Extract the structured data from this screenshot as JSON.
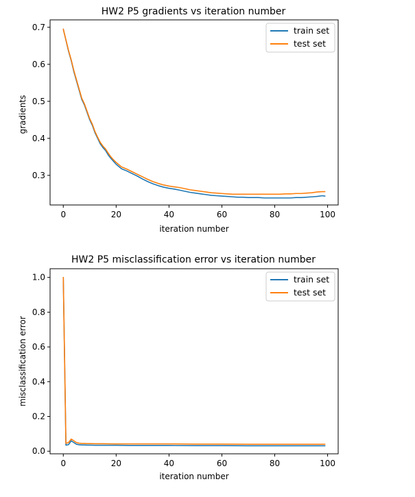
{
  "chart_data": [
    {
      "type": "line",
      "title": "HW2 P5 gradients vs iteration number",
      "xlabel": "iteration number",
      "ylabel": "gradients",
      "xlim": [
        -5,
        104
      ],
      "ylim": [
        0.22,
        0.72
      ],
      "xticks": [
        0,
        20,
        40,
        60,
        80,
        100
      ],
      "yticks": [
        0.3,
        0.4,
        0.5,
        0.6,
        0.7
      ],
      "grid": false,
      "legend": "top-right",
      "series": [
        {
          "name": "train set",
          "color": "#1f77b4",
          "x": [
            0,
            1,
            2,
            3,
            4,
            5,
            6,
            7,
            8,
            9,
            10,
            11,
            12,
            13,
            14,
            15,
            16,
            17,
            18,
            19,
            20,
            22,
            24,
            26,
            28,
            30,
            32,
            34,
            36,
            38,
            40,
            42,
            44,
            46,
            48,
            50,
            52,
            54,
            56,
            58,
            60,
            62,
            64,
            66,
            68,
            70,
            72,
            74,
            76,
            78,
            80,
            82,
            84,
            86,
            88,
            90,
            92,
            94,
            96,
            98,
            99
          ],
          "y": [
            0.695,
            0.665,
            0.635,
            0.61,
            0.58,
            0.555,
            0.53,
            0.505,
            0.49,
            0.47,
            0.45,
            0.435,
            0.415,
            0.4,
            0.385,
            0.375,
            0.367,
            0.355,
            0.346,
            0.338,
            0.33,
            0.318,
            0.312,
            0.305,
            0.298,
            0.29,
            0.283,
            0.277,
            0.272,
            0.268,
            0.265,
            0.263,
            0.26,
            0.257,
            0.254,
            0.252,
            0.25,
            0.248,
            0.246,
            0.245,
            0.244,
            0.243,
            0.242,
            0.241,
            0.241,
            0.24,
            0.24,
            0.24,
            0.239,
            0.239,
            0.239,
            0.239,
            0.239,
            0.239,
            0.24,
            0.24,
            0.241,
            0.242,
            0.243,
            0.245,
            0.244
          ]
        },
        {
          "name": "test set",
          "color": "#ff7f0e",
          "x": [
            0,
            1,
            2,
            3,
            4,
            5,
            6,
            7,
            8,
            9,
            10,
            11,
            12,
            13,
            14,
            15,
            16,
            17,
            18,
            19,
            20,
            22,
            24,
            26,
            28,
            30,
            32,
            34,
            36,
            38,
            40,
            42,
            44,
            46,
            48,
            50,
            52,
            54,
            56,
            58,
            60,
            62,
            64,
            66,
            68,
            70,
            72,
            74,
            76,
            78,
            80,
            82,
            84,
            86,
            88,
            90,
            92,
            94,
            96,
            98,
            99
          ],
          "y": [
            0.695,
            0.666,
            0.637,
            0.612,
            0.583,
            0.558,
            0.533,
            0.508,
            0.493,
            0.473,
            0.453,
            0.438,
            0.418,
            0.403,
            0.389,
            0.379,
            0.371,
            0.36,
            0.35,
            0.342,
            0.335,
            0.323,
            0.317,
            0.31,
            0.303,
            0.296,
            0.289,
            0.283,
            0.278,
            0.274,
            0.271,
            0.269,
            0.267,
            0.264,
            0.261,
            0.259,
            0.257,
            0.255,
            0.253,
            0.252,
            0.251,
            0.25,
            0.249,
            0.249,
            0.249,
            0.249,
            0.249,
            0.249,
            0.249,
            0.249,
            0.249,
            0.249,
            0.25,
            0.25,
            0.251,
            0.251,
            0.252,
            0.253,
            0.255,
            0.256,
            0.256
          ]
        }
      ]
    },
    {
      "type": "line",
      "title": "HW2 P5 misclassification error vs iteration number",
      "xlabel": "iteration number",
      "ylabel": "misclassification error",
      "xlim": [
        -5,
        104
      ],
      "ylim": [
        -0.015,
        1.05
      ],
      "xticks": [
        0,
        20,
        40,
        60,
        80,
        100
      ],
      "yticks": [
        0.0,
        0.2,
        0.4,
        0.6,
        0.8,
        1.0
      ],
      "grid": false,
      "legend": "top-right",
      "series": [
        {
          "name": "train set",
          "color": "#1f77b4",
          "x": [
            0,
            1,
            2,
            3,
            4,
            5,
            6,
            7,
            8,
            9,
            10,
            12,
            15,
            20,
            25,
            30,
            40,
            50,
            60,
            70,
            80,
            90,
            99
          ],
          "y": [
            1.0,
            0.035,
            0.038,
            0.06,
            0.05,
            0.04,
            0.037,
            0.036,
            0.036,
            0.035,
            0.035,
            0.034,
            0.034,
            0.034,
            0.033,
            0.033,
            0.033,
            0.032,
            0.032,
            0.031,
            0.031,
            0.031,
            0.031
          ]
        },
        {
          "name": "test set",
          "color": "#ff7f0e",
          "x": [
            0,
            1,
            2,
            3,
            4,
            5,
            6,
            7,
            8,
            9,
            10,
            12,
            15,
            20,
            25,
            30,
            40,
            50,
            60,
            70,
            80,
            90,
            99
          ],
          "y": [
            1.0,
            0.045,
            0.05,
            0.07,
            0.06,
            0.05,
            0.046,
            0.045,
            0.045,
            0.044,
            0.044,
            0.043,
            0.043,
            0.042,
            0.042,
            0.042,
            0.042,
            0.041,
            0.041,
            0.04,
            0.04,
            0.04,
            0.04
          ]
        }
      ]
    }
  ]
}
